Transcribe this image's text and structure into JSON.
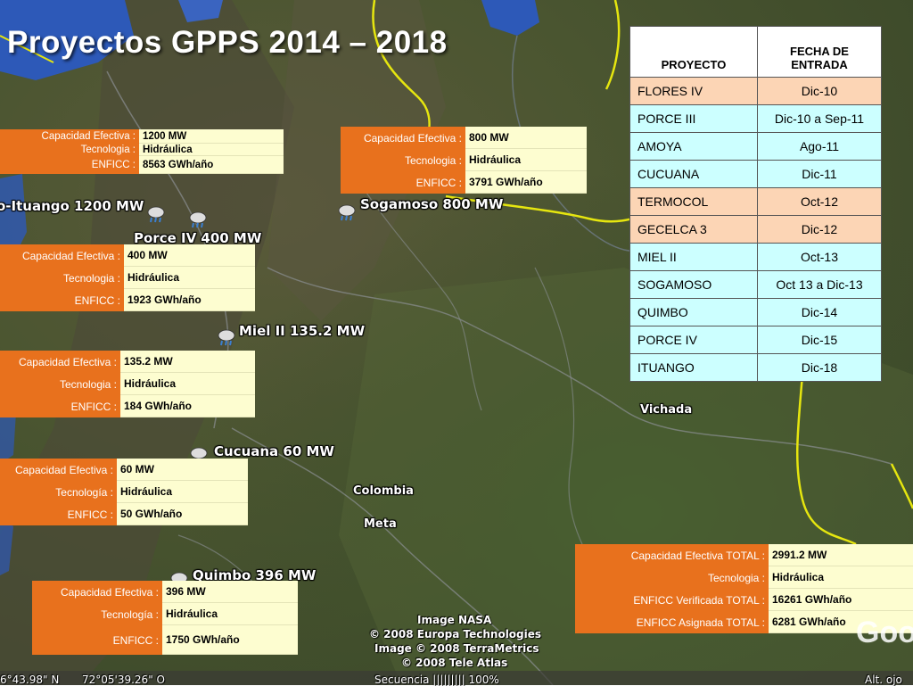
{
  "title": "Proyectos GPPS  2014 – 2018",
  "map_labels": {
    "ituango": "o-Ituango 1200 MW",
    "porce": "Porce IV 400 MW",
    "sogamoso": "Sogamoso 800 MW",
    "miel": "Miel II 135.2 MW",
    "vichada": "Vichada",
    "cucuana": "Cucuana 60 MW",
    "colombia": "Colombia",
    "meta": "Meta",
    "quimbo": "Quimbo 396 MW"
  },
  "boxes": {
    "ituango": {
      "cap_label": "Capacidad Efectiva :",
      "cap": "1200 MW",
      "tec_label": "Tecnologia :",
      "tec": "Hidráulica",
      "enf_label": "ENFICC :",
      "enf": " 8563  GWh/año"
    },
    "sogamoso": {
      "cap_label": "Capacidad Efectiva :",
      "cap": "800 MW",
      "tec_label": "Tecnologia :",
      "tec": "Hidráulica",
      "enf_label": "ENFICC :",
      "enf": " 3791  GWh/año"
    },
    "porce": {
      "cap_label": "Capacidad Efectiva :",
      "cap": "400 MW",
      "tec_label": "Tecnologia :",
      "tec": "Hidráulica",
      "enf_label": "ENFICC :",
      "enf": "1923  GWh/año"
    },
    "miel": {
      "cap_label": "Capacidad Efectiva :",
      "cap": "135.2 MW",
      "tec_label": "Tecnologia :",
      "tec": "Hidráulica",
      "enf_label": "ENFICC :",
      "enf": "184  GWh/año"
    },
    "cucuana": {
      "cap_label": "Capacidad Efectiva :",
      "cap": "60 MW",
      "tec_label": "Tecnología :",
      "tec": "Hidráulica",
      "enf_label": "ENFICC :",
      "enf": " 50  GWh/año"
    },
    "quimbo": {
      "cap_label": "Capacidad Efectiva :",
      "cap": "396 MW",
      "tec_label": "Tecnología :",
      "tec": "Hidráulica",
      "enf_label": "ENFICC :",
      "enf": " 1750  GWh/año"
    },
    "total": {
      "cap_label": "Capacidad Efectiva TOTAL :",
      "cap": "2991.2 MW",
      "tec_label": "Tecnologia :",
      "tec": "Hidráulica",
      "enf_label": "ENFICC Verificada TOTAL :",
      "enf": "16261  GWh/año",
      "asig_label": "ENFICC Asignada TOTAL :",
      "asig": "6281  GWh/año"
    }
  },
  "table": {
    "headers": [
      "PROYECTO",
      "FECHA DE ENTRADA"
    ],
    "rows": [
      {
        "proyecto": "FLORES IV",
        "fecha": "Dic-10",
        "color": "peach"
      },
      {
        "proyecto": "PORCE III",
        "fecha": "Dic-10 a Sep-11",
        "color": "cyan"
      },
      {
        "proyecto": "AMOYA",
        "fecha": "Ago-11",
        "color": "cyan"
      },
      {
        "proyecto": "CUCUANA",
        "fecha": "Dic-11",
        "color": "cyan"
      },
      {
        "proyecto": "TERMOCOL",
        "fecha": "Oct-12",
        "color": "peach"
      },
      {
        "proyecto": "GECELCA 3",
        "fecha": "Dic-12",
        "color": "peach"
      },
      {
        "proyecto": "MIEL II",
        "fecha": "Oct-13",
        "color": "cyan"
      },
      {
        "proyecto": "SOGAMOSO",
        "fecha": "Oct 13 a Dic-13",
        "color": "cyan"
      },
      {
        "proyecto": "QUIMBO",
        "fecha": "Dic-14",
        "color": "cyan"
      },
      {
        "proyecto": "PORCE IV",
        "fecha": "Dic-15",
        "color": "cyan"
      },
      {
        "proyecto": "ITUANGO",
        "fecha": "Dic-18",
        "color": "cyan"
      }
    ]
  },
  "attribution": {
    "line1": "Image NASA",
    "line2": "© 2008 Europa Technologies",
    "line3": "Image © 2008 TerraMetrics",
    "line4": "© 2008 Tele Atlas"
  },
  "status_bar": {
    "lat": "6°43.98\" N",
    "lon": "72°05'39.26\" O",
    "stream": "Secuencia ||||||||| 100%",
    "alt": "Alt. ojo"
  },
  "logo": "Goo",
  "colors": {
    "label_orange": "#e8711d",
    "value_yellow": "#fdfdd0",
    "peach": "#fcd5b5",
    "cyan": "#ccffff",
    "border_yellow": "#e6e60f"
  }
}
